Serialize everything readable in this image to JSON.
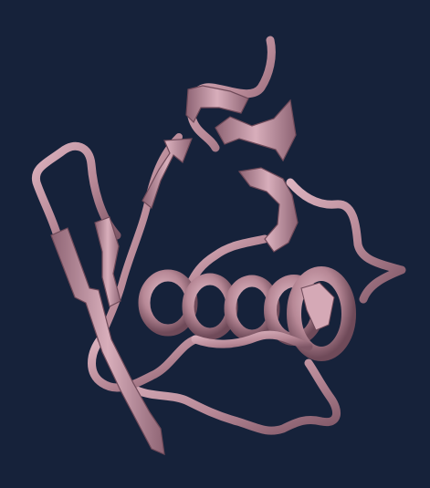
{
  "viewer": {
    "background_color": "#16223a",
    "ribbon_color": "#b78896",
    "ribbon_highlight": "#dcb3bf",
    "ribbon_shadow": "#7e5666",
    "style": "cartoon-ribbon",
    "icon": "protein-ribbon-icon"
  }
}
